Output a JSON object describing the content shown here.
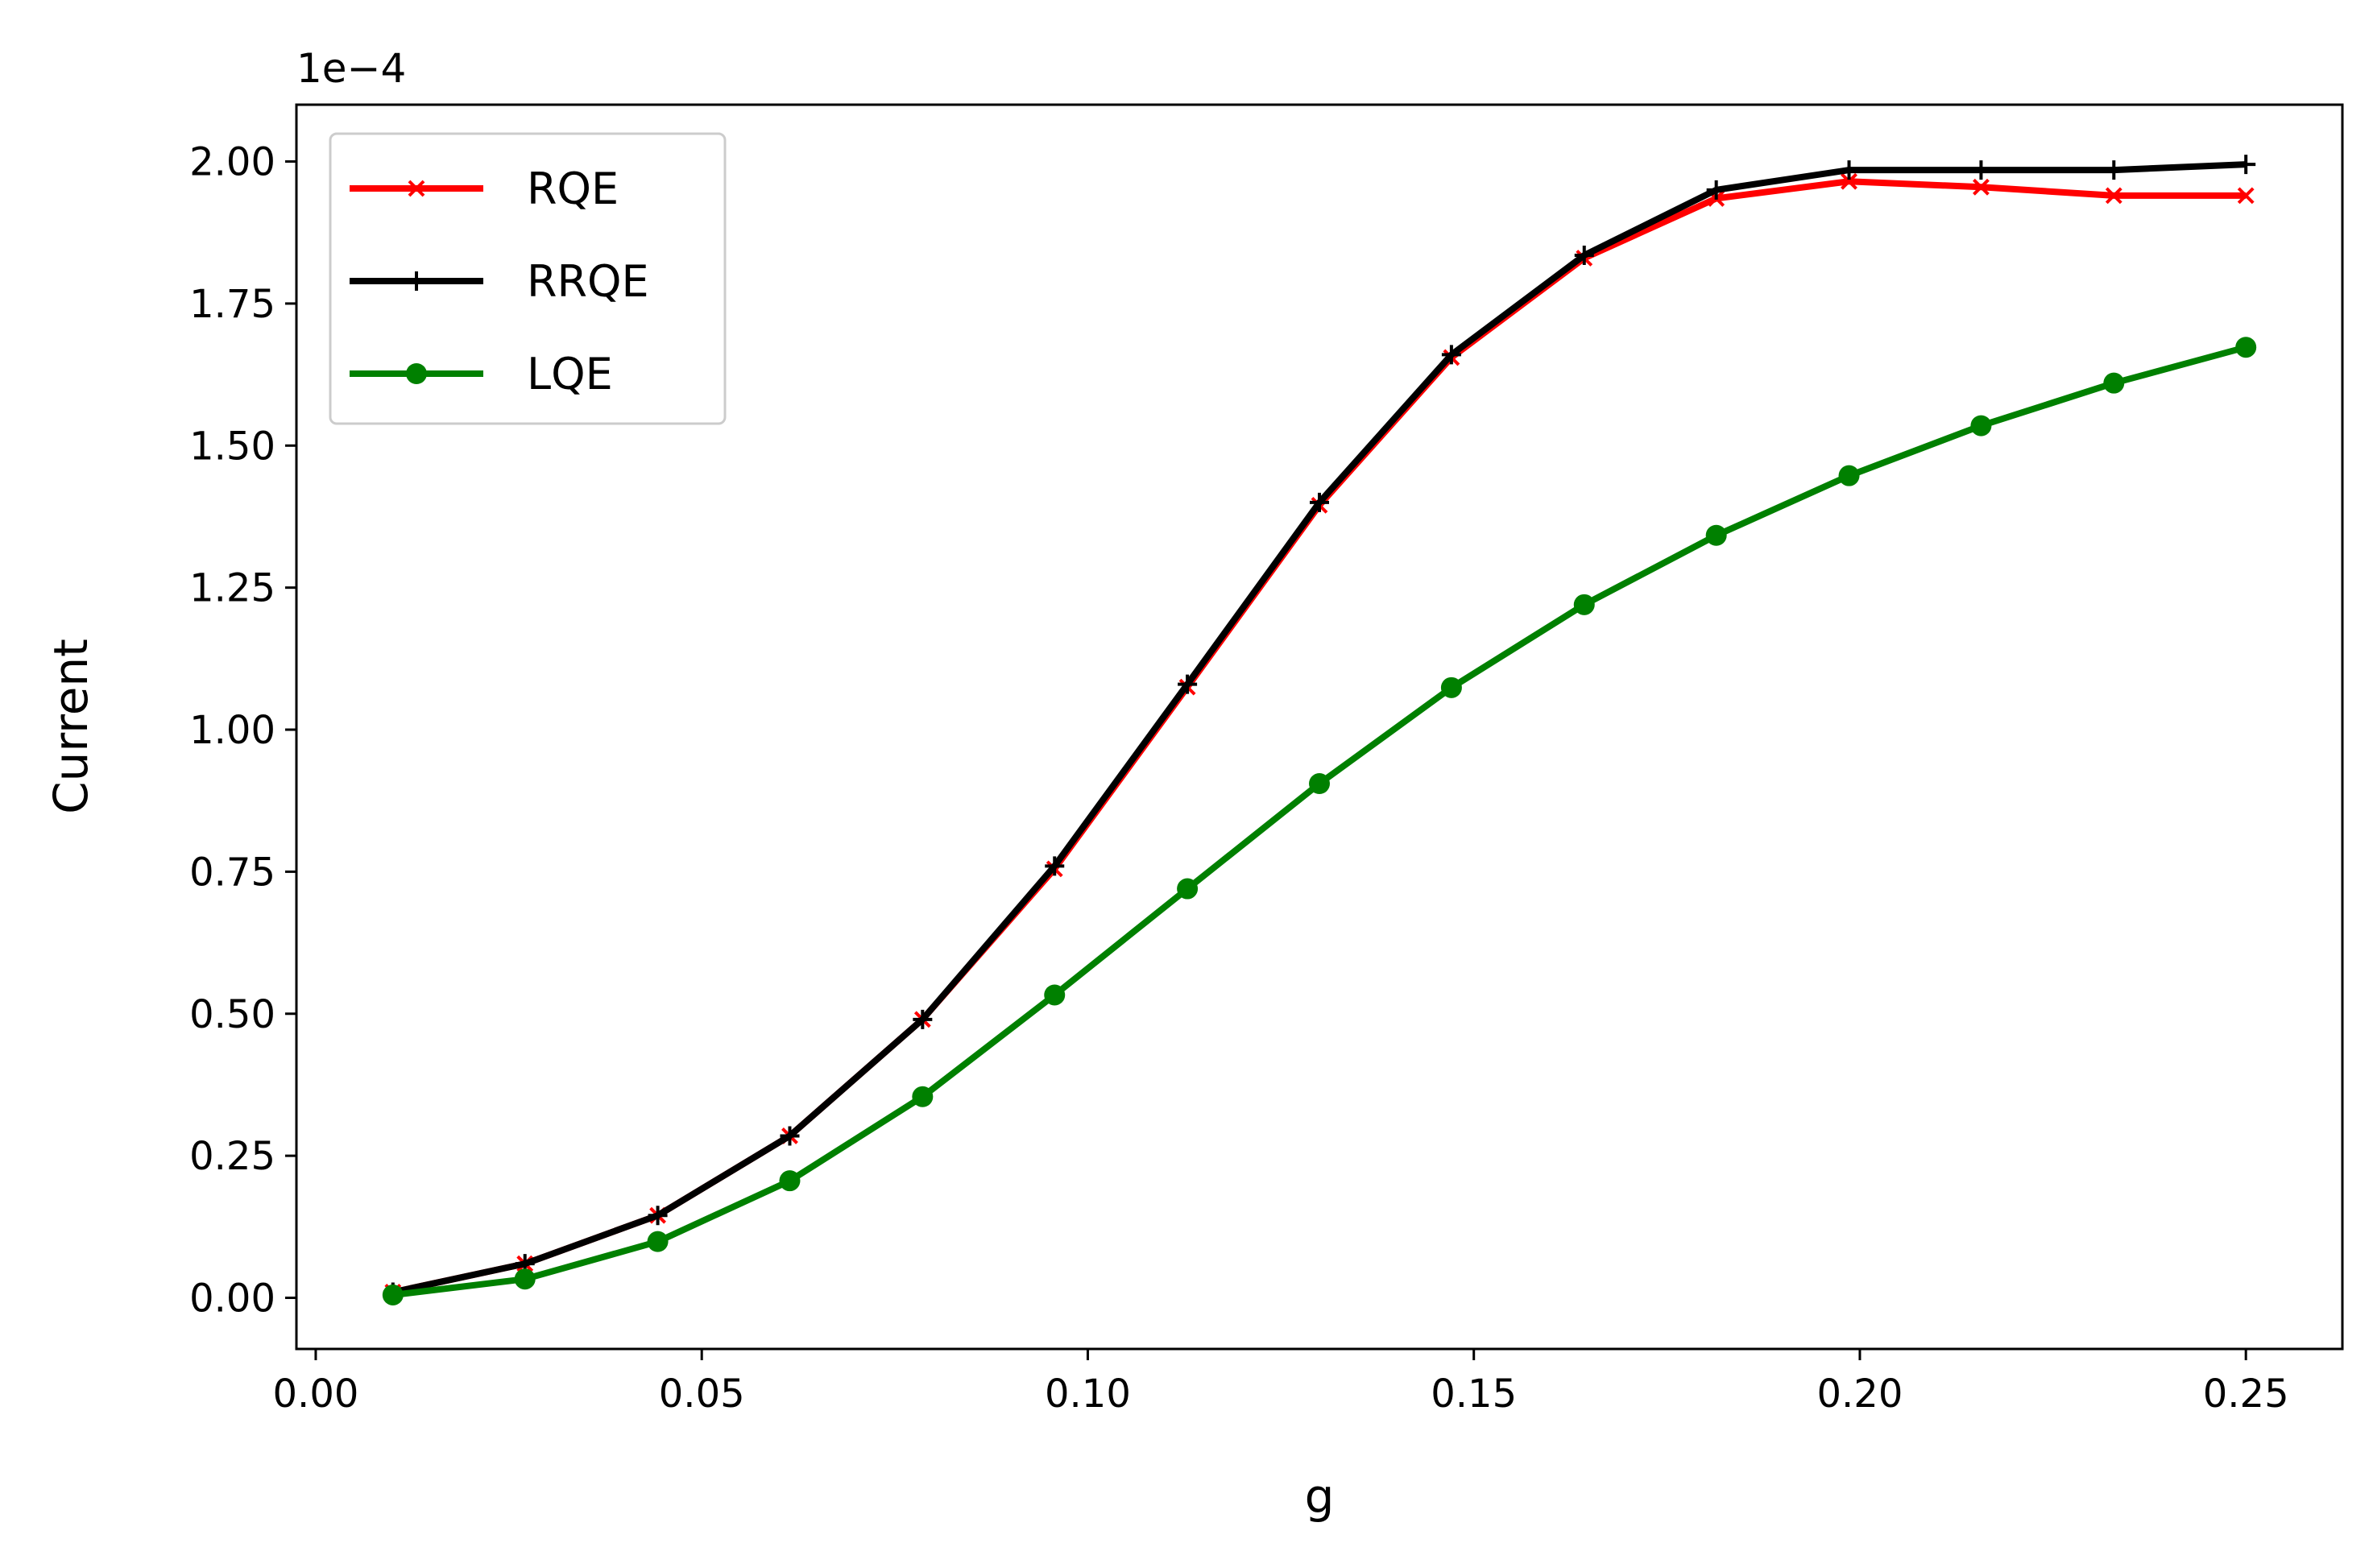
{
  "chart_data": {
    "type": "line",
    "title": "",
    "xlabel": "g",
    "ylabel": "Current",
    "offset_label": "1e−4",
    "xlim": [
      -0.0025,
      0.2625
    ],
    "ylim": [
      -0.09,
      2.1
    ],
    "x_ticks": [
      "0.00",
      "0.05",
      "0.10",
      "0.15",
      "0.20",
      "0.25"
    ],
    "y_ticks": [
      "0.00",
      "0.25",
      "0.50",
      "0.75",
      "1.00",
      "1.25",
      "1.50",
      "1.75",
      "2.00"
    ],
    "grid": false,
    "legend_position": "upper-left",
    "x": [
      0.01,
      0.0271,
      0.0443,
      0.0614,
      0.0786,
      0.0957,
      0.1129,
      0.13,
      0.1471,
      0.1643,
      0.1814,
      0.1986,
      0.2157,
      0.2329,
      0.25
    ],
    "series": [
      {
        "name": "RQE",
        "color": "#ff0000",
        "marker": "x",
        "values": [
          0.01,
          0.06,
          0.145,
          0.285,
          0.49,
          0.755,
          1.075,
          1.395,
          1.655,
          1.83,
          1.935,
          1.965,
          1.955,
          1.94,
          1.94
        ]
      },
      {
        "name": "RRQE",
        "color": "#000000",
        "marker": "+",
        "values": [
          0.01,
          0.06,
          0.145,
          0.285,
          0.49,
          0.76,
          1.08,
          1.4,
          1.66,
          1.835,
          1.95,
          1.985,
          1.985,
          1.985,
          1.995
        ]
      },
      {
        "name": "LQE",
        "color": "#008000",
        "marker": "o",
        "values": [
          0.005,
          0.033,
          0.099,
          0.206,
          0.354,
          0.533,
          0.72,
          0.905,
          1.074,
          1.22,
          1.342,
          1.447,
          1.535,
          1.61,
          1.673
        ]
      }
    ]
  }
}
